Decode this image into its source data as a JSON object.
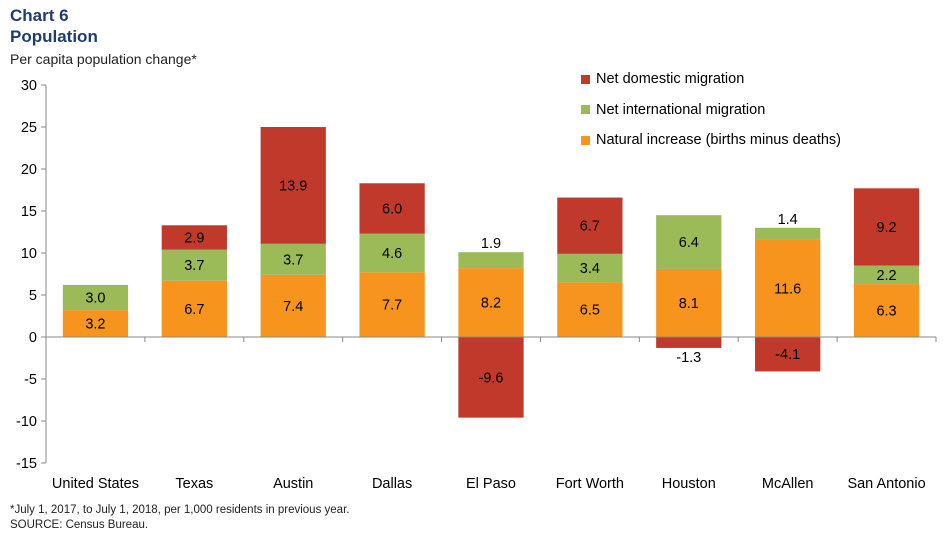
{
  "header": {
    "chart_number": "Chart 6",
    "title": "Population",
    "subtitle": "Per capita population change*"
  },
  "footnotes": {
    "note": "*July 1, 2017, to July 1, 2018, per 1,000 residents in previous year.",
    "source": "SOURCE: Census Bureau."
  },
  "colors": {
    "domestic": "#c0392b",
    "international": "#9bbb59",
    "natural": "#f7941d",
    "title": "#1f3d6e"
  },
  "chart_data": {
    "type": "bar",
    "stacked": true,
    "title": "Population",
    "ylabel": "Per capita population change*",
    "xlabel": "",
    "ylim": [
      -15,
      30
    ],
    "yticks": [
      -15,
      -10,
      -5,
      0,
      5,
      10,
      15,
      20,
      25,
      30
    ],
    "ytick_labels": [
      "-15",
      "-10",
      "-5",
      "0",
      "5",
      "10",
      "15",
      "20",
      "25",
      "30"
    ],
    "categories": [
      "United States",
      "Texas",
      "Austin",
      "Dallas",
      "El Paso",
      "Fort Worth",
      "Houston",
      "McAllen",
      "San Antonio"
    ],
    "series": [
      {
        "name": "Natural increase (births minus deaths)",
        "key": "natural",
        "values": [
          3.2,
          6.7,
          7.4,
          7.7,
          8.2,
          6.5,
          8.1,
          11.6,
          6.3
        ],
        "labels": [
          "3.2",
          "6.7",
          "7.4",
          "7.7",
          "8.2",
          "6.5",
          "8.1",
          "11.6",
          "6.3"
        ]
      },
      {
        "name": "Net international migration",
        "key": "international",
        "values": [
          3.0,
          3.7,
          3.7,
          4.6,
          1.9,
          3.4,
          6.4,
          1.4,
          2.2
        ],
        "labels": [
          "3.0",
          "3.7",
          "3.7",
          "4.6",
          "1.9",
          "3.4",
          "6.4",
          "1.4",
          "2.2"
        ]
      },
      {
        "name": "Net domestic migration",
        "key": "domestic",
        "values": [
          null,
          2.9,
          13.9,
          6.0,
          -9.6,
          6.7,
          -1.3,
          -4.1,
          9.2
        ],
        "labels": [
          null,
          "2.9",
          "13.9",
          "6.0",
          "-9.6",
          "6.7",
          "-1.3",
          "-4.1",
          "9.2"
        ]
      }
    ],
    "legend": [
      "Net domestic migration",
      "Net international migration",
      "Natural increase (births minus deaths)"
    ],
    "legend_position": "top-right"
  }
}
